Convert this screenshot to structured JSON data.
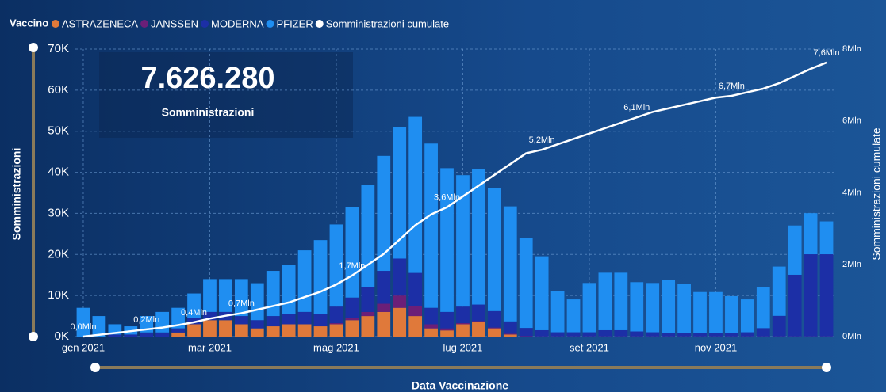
{
  "kpi": {
    "value": "7.626.280",
    "label": "Somministrazioni"
  },
  "chart_data": {
    "type": "bar",
    "legend_title": "Vaccino",
    "y_label": "Somministrazioni",
    "y2_label": "Somministrazioni cumulate",
    "x_label": "Data Vaccinazione",
    "categories": [
      "gen 2021",
      null,
      null,
      null,
      null,
      null,
      null,
      null,
      "mar 2021",
      null,
      null,
      null,
      null,
      null,
      null,
      null,
      "mag 2021",
      null,
      null,
      null,
      null,
      null,
      null,
      null,
      "lug 2021",
      null,
      null,
      null,
      null,
      null,
      null,
      null,
      "set 2021",
      null,
      null,
      null,
      null,
      null,
      null,
      null,
      "nov 2021",
      null,
      null,
      null,
      null,
      null,
      null,
      null
    ],
    "ylim": [
      0,
      70000
    ],
    "yticks": [
      {
        "value": 0,
        "label": "0K"
      },
      {
        "value": 10000,
        "label": "10K"
      },
      {
        "value": 20000,
        "label": "20K"
      },
      {
        "value": 30000,
        "label": "30K"
      },
      {
        "value": 40000,
        "label": "40K"
      },
      {
        "value": 50000,
        "label": "50K"
      },
      {
        "value": 60000,
        "label": "60K"
      },
      {
        "value": 70000,
        "label": "70K"
      }
    ],
    "y2lim": [
      0,
      8000000
    ],
    "y2ticks": [
      {
        "value": 0,
        "label": "0Mln"
      },
      {
        "value": 2000000,
        "label": "2Mln"
      },
      {
        "value": 4000000,
        "label": "4Mln"
      },
      {
        "value": 6000000,
        "label": "6Mln"
      },
      {
        "value": 8000000,
        "label": "8Mln"
      }
    ],
    "grid": true,
    "stacked": true,
    "series": [
      {
        "name": "ASTRAZENECA",
        "color": "#e0793a",
        "values": [
          0,
          0,
          0,
          0,
          0,
          0,
          1000,
          3000,
          4000,
          4000,
          3000,
          2000,
          2500,
          3000,
          3000,
          2500,
          3000,
          4000,
          5000,
          6000,
          7000,
          5000,
          2000,
          1500,
          3000,
          3500,
          2000,
          500,
          0,
          0,
          0,
          0,
          0,
          0,
          0,
          0,
          0,
          0,
          0,
          0,
          0,
          0,
          0,
          0,
          0,
          0,
          0,
          0
        ]
      },
      {
        "name": "JANSSEN",
        "color": "#6b1f78",
        "values": [
          0,
          0,
          0,
          0,
          0,
          0,
          0,
          0,
          0,
          0,
          0,
          0,
          0,
          0,
          0,
          0,
          300,
          500,
          1000,
          2000,
          3000,
          2500,
          1000,
          500,
          300,
          300,
          200,
          200,
          100,
          50,
          50,
          50,
          50,
          50,
          50,
          50,
          50,
          50,
          50,
          50,
          50,
          50,
          50,
          50,
          50,
          50,
          50,
          50
        ]
      },
      {
        "name": "MODERNA",
        "color": "#1c2fa6",
        "values": [
          0,
          0,
          500,
          500,
          1000,
          1000,
          1000,
          1500,
          2000,
          2000,
          2000,
          2000,
          2500,
          2500,
          3000,
          3000,
          4000,
          5000,
          6000,
          8000,
          9000,
          8000,
          4000,
          4000,
          4000,
          4000,
          4000,
          3000,
          2000,
          1500,
          1000,
          1000,
          1000,
          1500,
          1500,
          1200,
          1000,
          800,
          800,
          800,
          800,
          800,
          1000,
          2000,
          5000,
          15000,
          20000,
          20000
        ]
      },
      {
        "name": "PFIZER",
        "color": "#1f8ef1",
        "values": [
          7000,
          5000,
          2500,
          2000,
          4000,
          5000,
          5000,
          6000,
          8000,
          8000,
          9000,
          9000,
          11000,
          12000,
          15000,
          18000,
          20000,
          22000,
          25000,
          28000,
          32000,
          38000,
          40000,
          35000,
          32000,
          33000,
          30000,
          28000,
          22000,
          18000,
          10000,
          8000,
          12000,
          14000,
          14000,
          12000,
          12000,
          13000,
          12000,
          10000,
          10000,
          9000,
          8000,
          10000,
          12000,
          12000,
          10000,
          8000
        ]
      },
      {
        "name": "Somministrazioni cumulate",
        "color": "#ffffff",
        "axis": "y2",
        "type": "line",
        "values": [
          0,
          50000,
          100000,
          150000,
          200000,
          250000,
          320000,
          400000,
          500000,
          580000,
          650000,
          750000,
          850000,
          950000,
          1100000,
          1250000,
          1450000,
          1700000,
          2000000,
          2300000,
          2700000,
          3100000,
          3400000,
          3600000,
          3900000,
          4200000,
          4500000,
          4800000,
          5100000,
          5200000,
          5350000,
          5500000,
          5650000,
          5800000,
          5950000,
          6100000,
          6250000,
          6350000,
          6450000,
          6550000,
          6650000,
          6700000,
          6800000,
          6900000,
          7050000,
          7250000,
          7450000,
          7626280
        ],
        "value_labels": [
          "0,0Mln",
          null,
          null,
          null,
          "0,2Mln",
          null,
          null,
          "0,4Mln",
          null,
          null,
          "0,7Mln",
          null,
          null,
          null,
          null,
          null,
          null,
          "1,7Mln",
          null,
          null,
          null,
          null,
          null,
          "3,6Mln",
          null,
          null,
          null,
          null,
          null,
          "5,2Mln",
          null,
          null,
          null,
          null,
          null,
          "6,1Mln",
          null,
          null,
          null,
          null,
          null,
          "6,7Mln",
          null,
          null,
          null,
          null,
          null,
          "7,6Mln"
        ]
      }
    ]
  }
}
